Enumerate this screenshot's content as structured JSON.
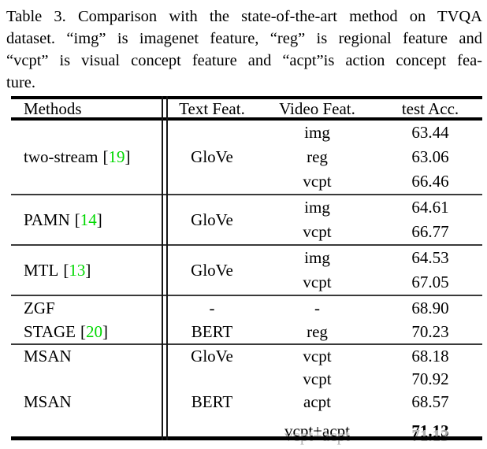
{
  "caption": {
    "lines": [
      "Table 3. Comparison with the state-of-the-art method on TVQA",
      "dataset. “img” is imagenet feature, “reg” is regional feature and",
      "“vcpt” is visual concept feature and “acpt”is action concept fea-",
      "ture."
    ]
  },
  "punct": {
    "lbracket": "[",
    "rbracket": "]"
  },
  "colors": {
    "citation_green": "#00d800"
  },
  "table": {
    "headers": [
      "Methods",
      "Text Feat.",
      "Video Feat.",
      "test Acc."
    ],
    "sections": [
      {
        "method": "two-stream",
        "cite": "19",
        "text_feat": "GloVe",
        "rows": [
          {
            "video_feat": "img",
            "acc": "63.44"
          },
          {
            "video_feat": "reg",
            "acc": "63.06"
          },
          {
            "video_feat": "vcpt",
            "acc": "66.46"
          }
        ]
      },
      {
        "method": "PAMN",
        "cite": "14",
        "text_feat": "GloVe",
        "rows": [
          {
            "video_feat": "img",
            "acc": "64.61"
          },
          {
            "video_feat": "vcpt",
            "acc": "66.77"
          }
        ]
      },
      {
        "method": "MTL",
        "cite": "13",
        "text_feat": "GloVe",
        "rows": [
          {
            "video_feat": "img",
            "acc": "64.53"
          },
          {
            "video_feat": "vcpt",
            "acc": "67.05"
          }
        ]
      },
      {
        "rows": [
          {
            "method": "ZGF",
            "text_feat": "-",
            "video_feat": "-",
            "acc": "68.90"
          },
          {
            "method": "STAGE",
            "cite": "20",
            "text_feat": "BERT",
            "video_feat": "reg",
            "acc": "70.23"
          }
        ]
      },
      {
        "rows": [
          {
            "method": "MSAN",
            "text_feat": "GloVe",
            "video_feat": "vcpt",
            "acc": "68.18"
          },
          {
            "method": "",
            "text_feat": "",
            "video_feat": "vcpt",
            "acc": "70.92"
          },
          {
            "method": "MSAN",
            "text_feat": "BERT",
            "video_feat": "acpt",
            "acc": "68.57"
          },
          {
            "method": "",
            "text_feat": "",
            "video_feat": "vcpt+acpt",
            "acc": "71.13",
            "bold": true
          }
        ]
      }
    ]
  }
}
